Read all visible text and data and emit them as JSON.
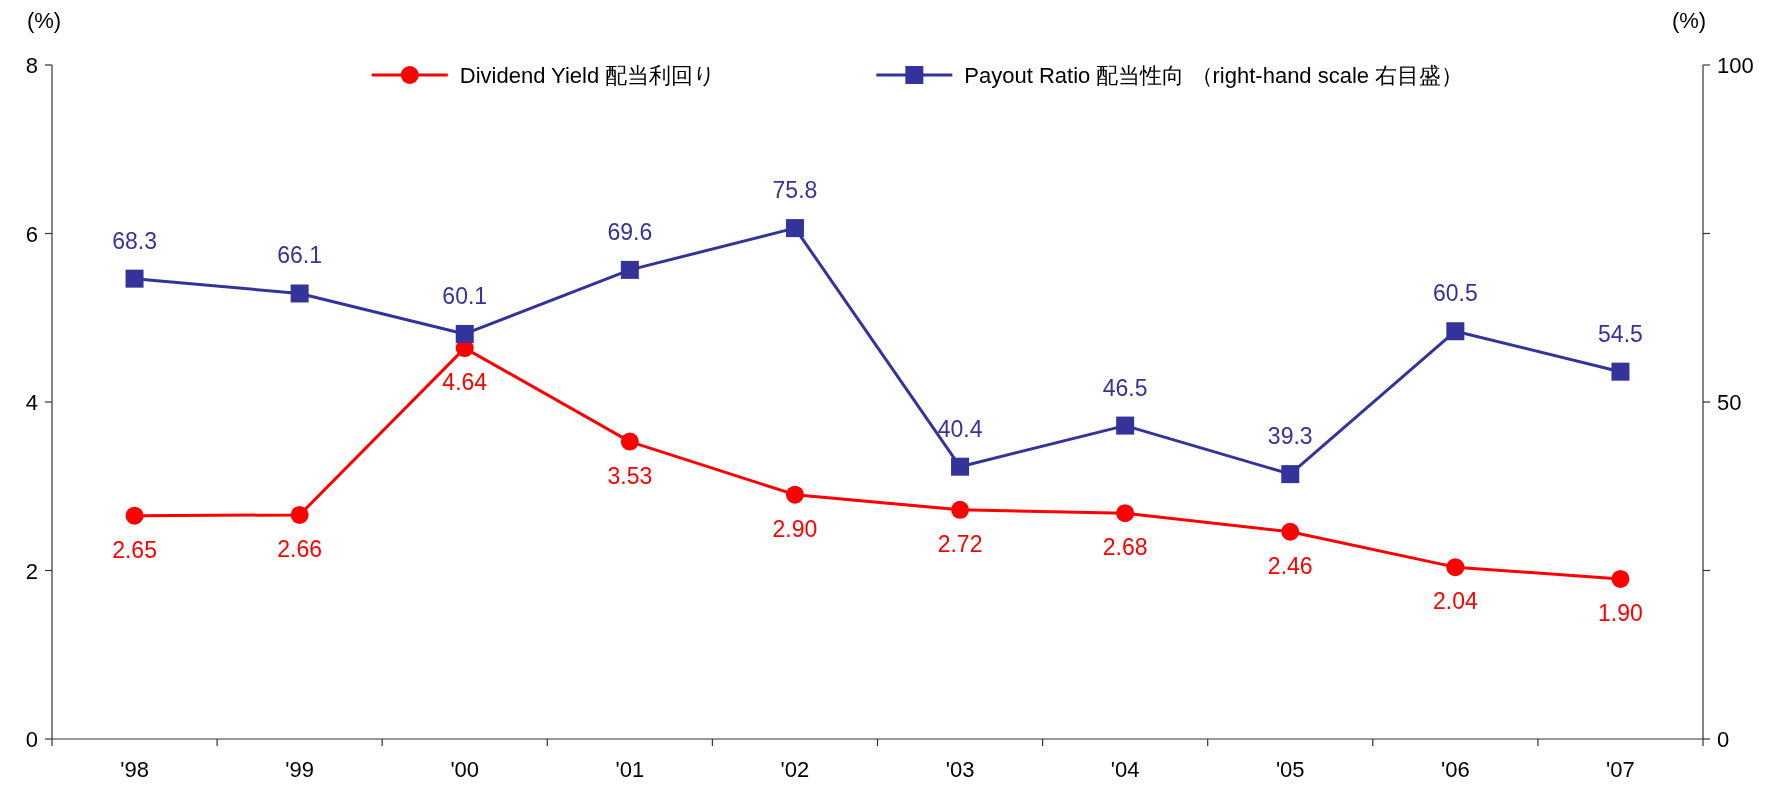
{
  "chart_data": {
    "type": "line",
    "categories": [
      "'98",
      "'99",
      "'00",
      "'01",
      "'02",
      "'03",
      "'04",
      "'05",
      "'06",
      "'07"
    ],
    "series": [
      {
        "name": "Dividend Yield 配当利回り",
        "color": "#ff0000",
        "marker": "circle",
        "values": [
          2.65,
          2.66,
          4.64,
          3.53,
          2.9,
          2.72,
          2.68,
          2.46,
          2.04,
          1.9
        ],
        "value_labels": [
          "2.65",
          "2.66",
          "4.64",
          "3.53",
          "2.90",
          "2.72",
          "2.68",
          "2.46",
          "2.04",
          "1.90"
        ]
      },
      {
        "name": "Payout Ratio 配当性向 （right-hand scale 右目盛）",
        "color": "#333399",
        "marker": "square",
        "axis": "y2",
        "values": [
          68.3,
          66.1,
          60.1,
          69.6,
          75.8,
          40.4,
          46.5,
          39.3,
          60.5,
          54.5
        ],
        "value_labels": [
          "68.3",
          "66.1",
          "60.1",
          "69.6",
          "75.8",
          "40.4",
          "46.5",
          "39.3",
          "60.5",
          "54.5"
        ]
      }
    ],
    "ylabel": "(%)",
    "y2label": "(%)",
    "ylim": [
      0,
      8
    ],
    "yticks": [
      0,
      2,
      4,
      6,
      8
    ],
    "y2lim": [
      0,
      100
    ],
    "y2ticks": [
      0,
      {
        "value": 25,
        "label": null
      },
      50,
      {
        "value": 75,
        "label": null
      },
      100
    ],
    "legend": "top"
  }
}
